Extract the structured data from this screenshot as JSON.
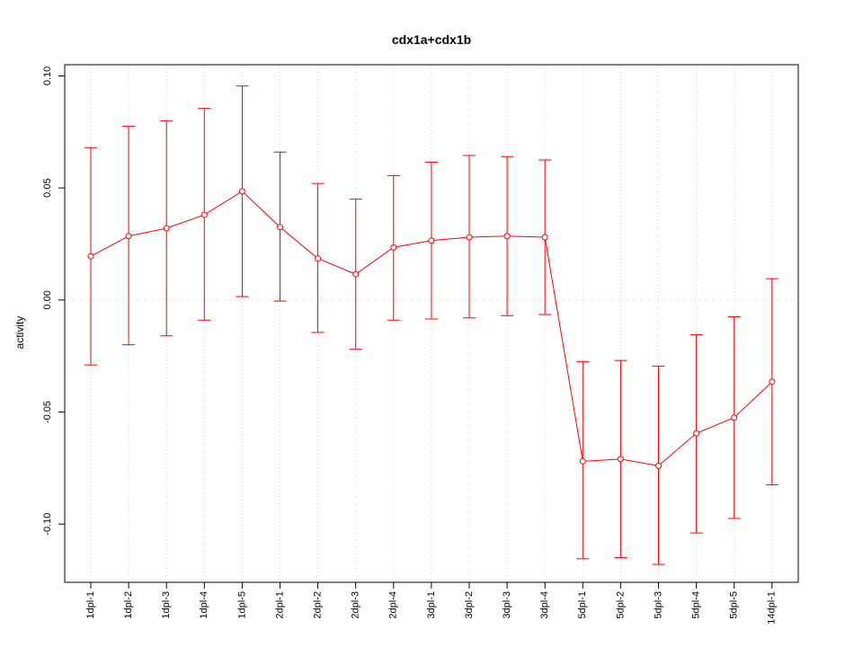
{
  "chart_data": {
    "type": "line",
    "title": "cdx1a+cdx1b",
    "xlabel": "",
    "ylabel": "activity",
    "categories": [
      "1dpl-1",
      "1dpl-2",
      "1dpl-3",
      "1dpl-4",
      "1dpl-5",
      "2dpl-1",
      "2dpl-2",
      "2dpl-3",
      "2dpl-4",
      "3dpl-1",
      "3dpl-2",
      "3dpl-3",
      "3dpl-4",
      "5dpl-1",
      "5dpl-2",
      "5dpl-3",
      "5dpl-4",
      "5dpl-5",
      "14dpl-1"
    ],
    "yticks": [
      -0.1,
      -0.05,
      0.0,
      0.05,
      0.1
    ],
    "ytick_labels": [
      "-0.10",
      "-0.05",
      "0.00",
      "0.05",
      "0.10"
    ],
    "ylim": [
      -0.126,
      0.105
    ],
    "grid": true,
    "series": [
      {
        "values": [
          0.0195,
          0.0285,
          0.032,
          0.038,
          0.0485,
          0.0325,
          0.0185,
          0.0115,
          0.0235,
          0.0265,
          0.028,
          0.0285,
          0.028,
          -0.072,
          -0.071,
          -0.074,
          -0.0595,
          -0.0525,
          -0.0365
        ],
        "upper": [
          0.068,
          0.0775,
          0.08,
          0.0855,
          0.0955,
          0.066,
          0.052,
          0.045,
          0.0555,
          0.0615,
          0.0645,
          0.064,
          0.0625,
          -0.0275,
          -0.027,
          -0.0295,
          -0.0155,
          -0.0075,
          0.0095
        ],
        "lower": [
          -0.029,
          -0.02,
          -0.016,
          -0.009,
          0.0015,
          -0.0005,
          -0.0145,
          -0.022,
          -0.009,
          -0.0085,
          -0.008,
          -0.007,
          -0.0065,
          -0.1155,
          -0.115,
          -0.118,
          -0.104,
          -0.0975,
          -0.0825
        ]
      }
    ],
    "colors": {
      "series": "#ff0000",
      "grid": "#d3d3d3",
      "axis": "#000000"
    }
  }
}
